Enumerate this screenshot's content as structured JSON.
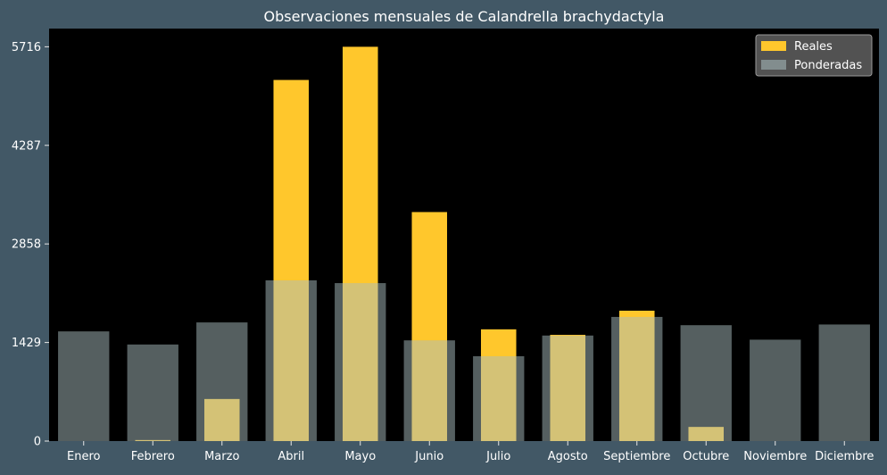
{
  "chart_data": {
    "type": "bar",
    "title": "Observaciones mensuales de Calandrella brachydactyla",
    "xlabel": "",
    "ylabel": "",
    "categories": [
      "Enero",
      "Febrero",
      "Marzo",
      "Abril",
      "Mayo",
      "Junio",
      "Julio",
      "Agosto",
      "Septiembre",
      "Octubre",
      "Noviembre",
      "Diciembre"
    ],
    "series": [
      {
        "name": "Reales",
        "color": "#FFC72C",
        "values": [
          0,
          15,
          610,
          5235,
          5716,
          3320,
          1620,
          1540,
          1890,
          205,
          0,
          0
        ]
      },
      {
        "name": "Ponderadas",
        "color": "#A9BDBF",
        "values": [
          1590,
          1400,
          1720,
          2330,
          2290,
          1460,
          1230,
          1530,
          1800,
          1680,
          1470,
          1690
        ]
      }
    ],
    "yticks": [
      0,
      1429,
      2858,
      4287,
      5716
    ],
    "ylim": [
      0,
      5980
    ],
    "grid": false,
    "legend": "top-right",
    "background": "#425866",
    "plot_background": "#000000"
  }
}
